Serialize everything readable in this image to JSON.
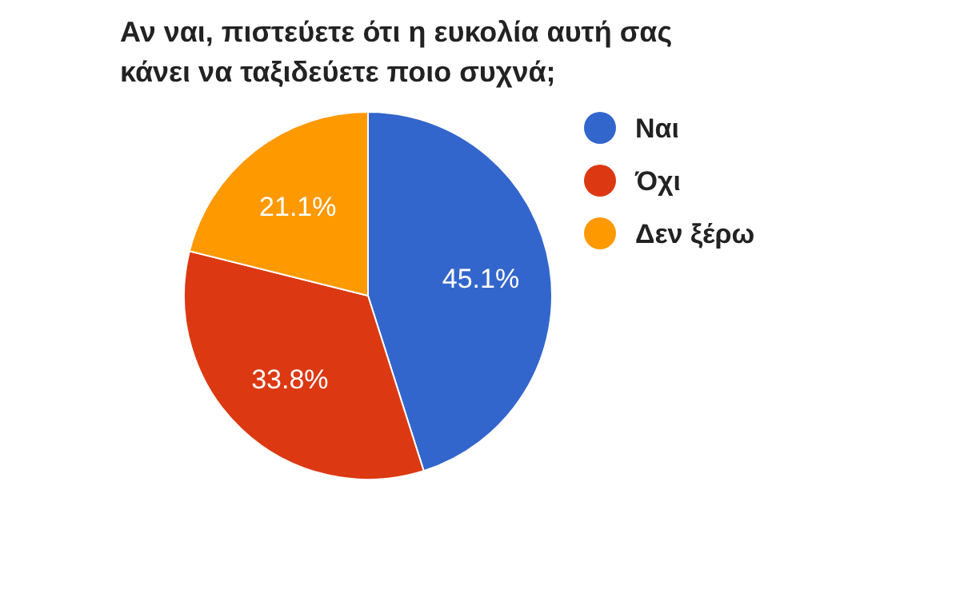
{
  "chart_data": {
    "type": "pie",
    "title": "Αν ναι, πιστεύετε ότι η ευκολία αυτή σας κάνει να ταξιδεύετε ποιο συχνά;",
    "categories": [
      "Ναι",
      "Όχι",
      "Δεν ξέρω"
    ],
    "values": [
      45.1,
      33.8,
      21.1
    ],
    "colors": [
      "#3366cc",
      "#dc3912",
      "#ff9900"
    ],
    "value_labels": [
      "45.1%",
      "33.8%",
      "21.1%"
    ],
    "legend": "right"
  }
}
